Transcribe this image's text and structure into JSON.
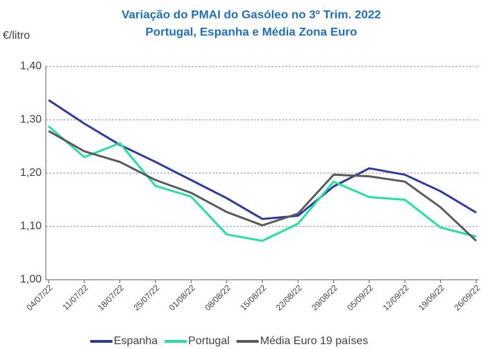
{
  "chart_data": {
    "type": "line",
    "title": [
      "Variação do PMAI do Gasóleo no 3º Trim. 2022",
      "Portugal, Espanha e Média Zona Euro"
    ],
    "y_axis_label": "€/litro",
    "categories": [
      "04/07/22",
      "11/07/22",
      "18/07/22",
      "25/07/22",
      "01/08/22",
      "08/08/22",
      "15/08/22",
      "22/08/22",
      "29/08/22",
      "05/09/22",
      "12/09/22",
      "19/09/22",
      "26/09/22"
    ],
    "series": [
      {
        "name": "Espanha",
        "color": "#2b3a9b",
        "values": [
          1.337,
          1.293,
          1.253,
          1.221,
          1.187,
          1.153,
          1.114,
          1.12,
          1.175,
          1.209,
          1.197,
          1.166,
          1.126
        ]
      },
      {
        "name": "Portugal",
        "color": "#22e0a0",
        "values": [
          1.288,
          1.23,
          1.256,
          1.176,
          1.156,
          1.085,
          1.073,
          1.105,
          1.184,
          1.155,
          1.15,
          1.098,
          1.081
        ]
      },
      {
        "name": "Média Euro 19 países",
        "color": "#595959",
        "values": [
          1.279,
          1.241,
          1.221,
          1.187,
          1.163,
          1.127,
          1.102,
          1.124,
          1.197,
          1.194,
          1.184,
          1.136,
          1.073
        ]
      }
    ],
    "ylim": [
      1.0,
      1.4
    ],
    "yticks": [
      {
        "value": 1.0,
        "label": "1,00"
      },
      {
        "value": 1.1,
        "label": "1,10"
      },
      {
        "value": 1.2,
        "label": "1,20"
      },
      {
        "value": 1.3,
        "label": "1,30"
      },
      {
        "value": 1.4,
        "label": "1,40"
      }
    ],
    "grid": true,
    "legend": "bottom"
  }
}
